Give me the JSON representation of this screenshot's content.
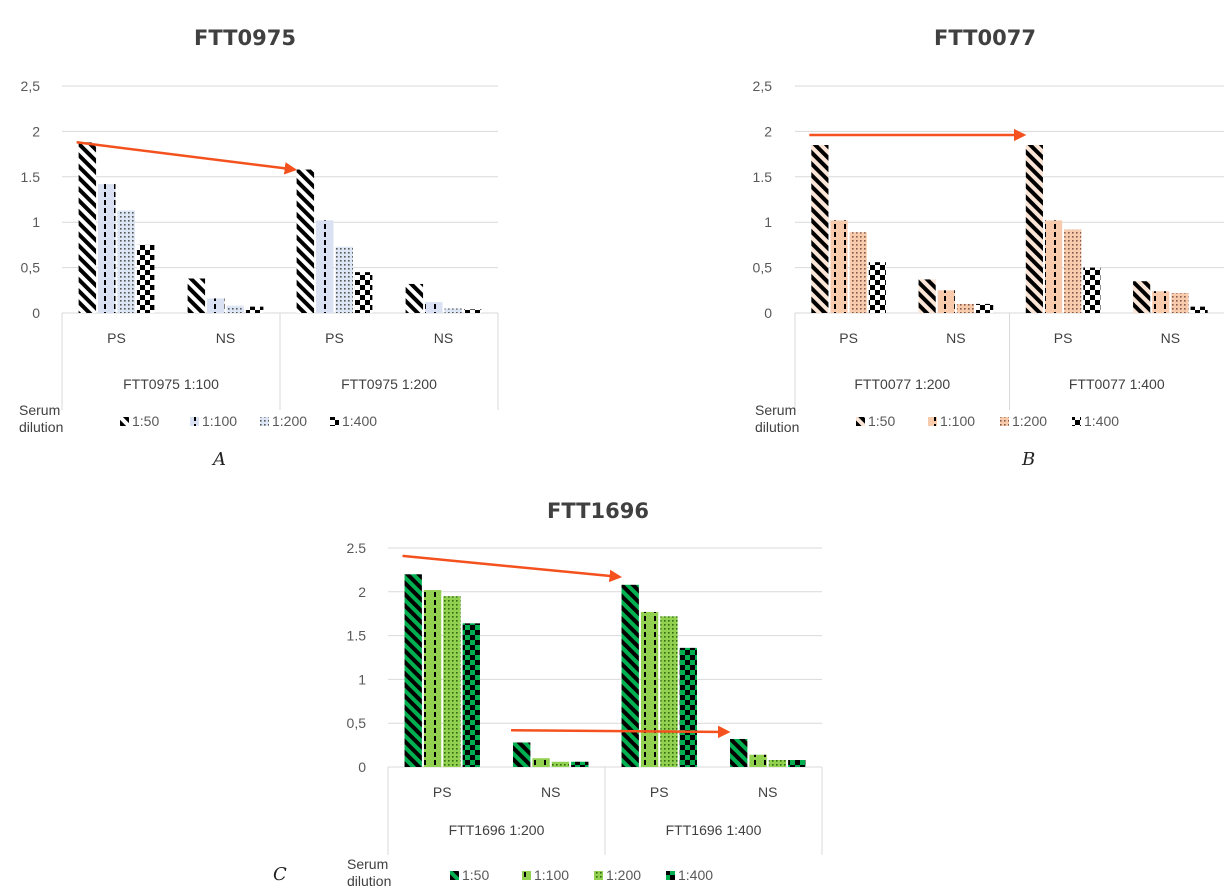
{
  "legend_title": "Serum\ndilution",
  "chart_data": [
    {
      "type": "bar",
      "panel_label": "A",
      "title": "FTT0975",
      "ylim": [
        0,
        2.5
      ],
      "yticks": [
        "0",
        "0,5",
        "1",
        "1.5",
        "2",
        "2,5"
      ],
      "categories": [
        "PS",
        "NS",
        "PS",
        "NS"
      ],
      "groups": [
        "FTT0975 1:100",
        "FTT0975 1:200"
      ],
      "series": [
        {
          "name": "1:50",
          "values": [
            1.88,
            0.38,
            1.58,
            0.32
          ]
        },
        {
          "name": "1:100",
          "values": [
            1.42,
            0.16,
            1.02,
            0.12
          ]
        },
        {
          "name": "1:200",
          "values": [
            1.13,
            0.08,
            0.73,
            0.05
          ]
        },
        {
          "name": "1:400",
          "values": [
            0.75,
            0.07,
            0.45,
            0.04
          ]
        }
      ],
      "legend_position": "bottom",
      "grid": true,
      "annotations": [
        {
          "type": "arrow",
          "from": {
            "category_index": 0,
            "y": 1.88
          },
          "to": {
            "category_index": 2,
            "y": 1.58
          }
        }
      ]
    },
    {
      "type": "bar",
      "panel_label": "B",
      "title": "FTT0077",
      "ylim": [
        0,
        2.5
      ],
      "yticks": [
        "0",
        "0,5",
        "1",
        "1.5",
        "2",
        "2,5"
      ],
      "categories": [
        "PS",
        "NS",
        "PS",
        "NS"
      ],
      "groups": [
        "FTT0077 1:200",
        "FTT0077 1:400"
      ],
      "series": [
        {
          "name": "1:50",
          "values": [
            1.85,
            0.37,
            1.85,
            0.35
          ]
        },
        {
          "name": "1:100",
          "values": [
            1.02,
            0.25,
            1.02,
            0.24
          ]
        },
        {
          "name": "1:200",
          "values": [
            0.89,
            0.1,
            0.92,
            0.22
          ]
        },
        {
          "name": "1:400",
          "values": [
            0.56,
            0.1,
            0.5,
            0.07
          ]
        }
      ],
      "legend_position": "bottom",
      "grid": true,
      "annotations": [
        {
          "type": "arrow",
          "from": {
            "category_index": 0,
            "y": 1.96
          },
          "to": {
            "category_index": 2,
            "y": 1.96
          }
        }
      ]
    },
    {
      "type": "bar",
      "panel_label": "C",
      "title": "FTT1696",
      "ylim": [
        0,
        2.5
      ],
      "yticks": [
        "0",
        "0,5",
        "1",
        "1.5",
        "2",
        "2.5"
      ],
      "categories": [
        "PS",
        "NS",
        "PS",
        "NS"
      ],
      "groups": [
        "FTT1696 1:200",
        "FTT1696 1:400"
      ],
      "series": [
        {
          "name": "1:50",
          "values": [
            2.2,
            0.28,
            2.08,
            0.32
          ]
        },
        {
          "name": "1:100",
          "values": [
            2.02,
            0.1,
            1.77,
            0.14
          ]
        },
        {
          "name": "1:200",
          "values": [
            1.95,
            0.06,
            1.72,
            0.08
          ]
        },
        {
          "name": "1:400",
          "values": [
            1.64,
            0.06,
            1.36,
            0.08
          ]
        }
      ],
      "legend_position": "bottom",
      "grid": true,
      "annotations": [
        {
          "type": "arrow",
          "from": {
            "category_index": 0,
            "y": 2.41
          },
          "to": {
            "category_index": 2,
            "y": 2.17
          }
        },
        {
          "type": "arrow",
          "from": {
            "category_index": 1,
            "y": 0.42
          },
          "to": {
            "category_index": 3,
            "y": 0.4
          }
        }
      ]
    }
  ]
}
